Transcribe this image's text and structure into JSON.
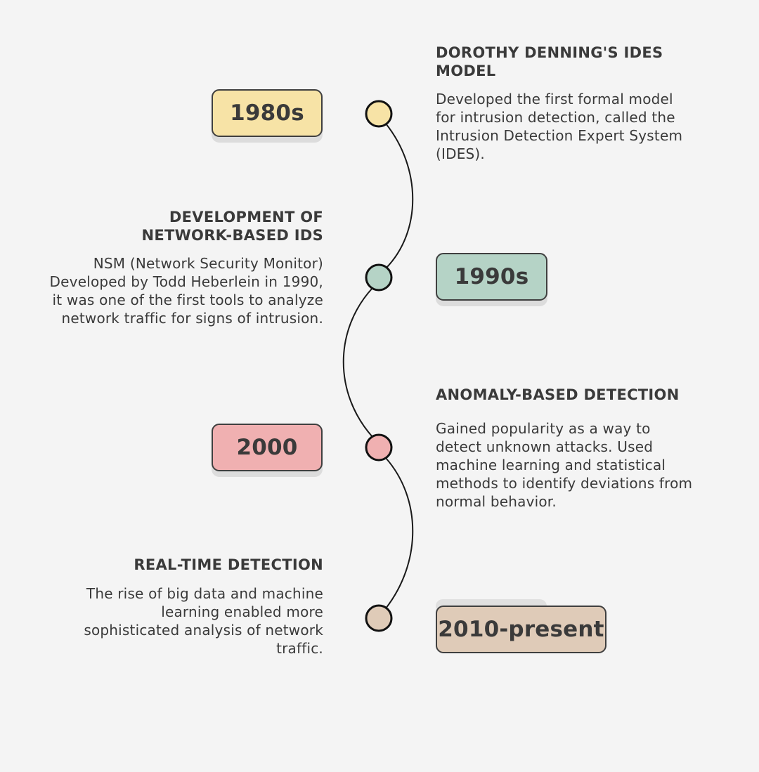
{
  "colors": {
    "background": "#f4f4f4",
    "text": "#3a3a3a",
    "line": "#1a1a1a",
    "era_1980s": "#f7e3a6",
    "era_1990s": "#b5d3c6",
    "era_2000": "#f0b0b1",
    "era_2010": "#dfcbb8"
  },
  "timeline": {
    "events": [
      {
        "year": "1980s",
        "title": "DOROTHY DENNING'S IDES MODEL",
        "description": "Developed the first formal model for intrusion detection, called the Intrusion Detection Expert System (IDES)."
      },
      {
        "year": "1990s",
        "title": "DEVELOPMENT OF NETWORK-BASED IDS",
        "description": "NSM (Network Security Monitor) Developed by Todd Heberlein in 1990, it was one of the first tools to analyze network traffic for signs of intrusion."
      },
      {
        "year": "2000",
        "title": "ANOMALY-BASED DETECTION",
        "description": "Gained popularity as a way to detect unknown attacks. Used machine learning and statistical methods to identify deviations from normal behavior."
      },
      {
        "year": "2010-present",
        "title": "REAL-TIME DETECTION",
        "description": "The rise of big data and machine learning enabled more sophisticated analysis of network traffic."
      }
    ]
  }
}
